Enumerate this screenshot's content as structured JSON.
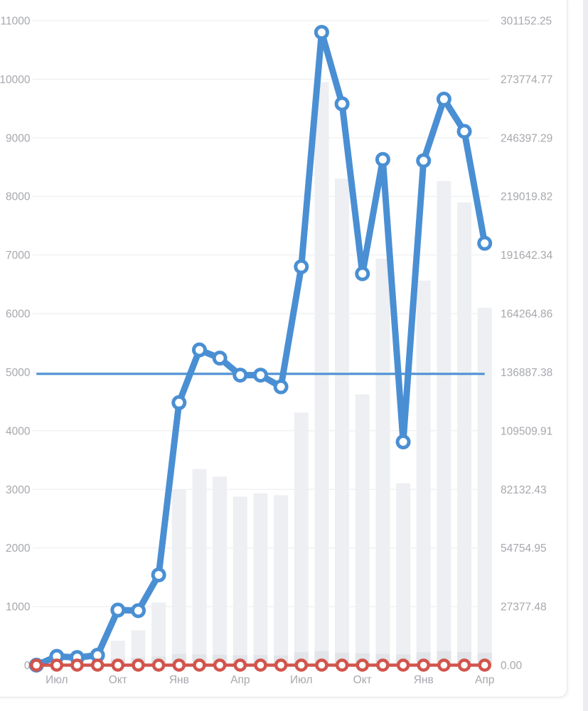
{
  "card": {
    "background": "#ffffff",
    "border_color": "#e7e8ea"
  },
  "chart_data": {
    "type": "line",
    "title": "",
    "xlabel": "",
    "ylabel": "",
    "point_count": 23,
    "x_axis": {
      "visible_tick_labels": [
        {
          "point_index": 1,
          "label": "Июл"
        },
        {
          "point_index": 4,
          "label": "Окт"
        },
        {
          "point_index": 7,
          "label": "Янв"
        },
        {
          "point_index": 10,
          "label": "Апр"
        },
        {
          "point_index": 13,
          "label": "Июл"
        },
        {
          "point_index": 16,
          "label": "Окт"
        },
        {
          "point_index": 19,
          "label": "Янв"
        },
        {
          "point_index": 22,
          "label": "Апр"
        }
      ]
    },
    "left_axis": {
      "min": 0,
      "max": 11000,
      "tick_step": 1000,
      "tick_labels": [
        "11000",
        "10000",
        "9000",
        "8000",
        "7000",
        "6000",
        "5000",
        "4000",
        "3000",
        "2000",
        "1000",
        "0"
      ]
    },
    "right_axis": {
      "min": 0,
      "max": 301152.25,
      "tick_labels": [
        "301152.25",
        "273774.77",
        "246397.29",
        "219019.82",
        "191642.34",
        "164264.86",
        "136887.38",
        "109509.91",
        "82132.43",
        "54754.95",
        "27377.48",
        "0.00"
      ]
    },
    "grid": {
      "horizontal": true,
      "vertical": false,
      "color": "#eaebed"
    },
    "legend": {
      "visible": false
    },
    "series": [
      {
        "name": "blue-line",
        "type": "line",
        "axis": "left",
        "color": "#4a8fd3",
        "values": [
          0,
          150,
          130,
          170,
          940,
          930,
          1540,
          4480,
          5380,
          5240,
          4950,
          4950,
          4750,
          6800,
          10800,
          9580,
          6680,
          8630,
          3810,
          8610,
          9660,
          9110,
          7200
        ]
      },
      {
        "name": "red-line",
        "type": "line",
        "axis": "left",
        "color": "#d2544c",
        "values": [
          0,
          0,
          0,
          0,
          0,
          0,
          0,
          0,
          0,
          0,
          0,
          0,
          0,
          0,
          0,
          0,
          0,
          0,
          0,
          0,
          0,
          0,
          0
        ]
      },
      {
        "name": "bars-primary",
        "type": "bar",
        "axis": "right",
        "color": "#edeff2",
        "values": [
          0,
          0,
          0,
          0,
          11400,
          16300,
          29300,
          82100,
          91600,
          88100,
          78700,
          80300,
          79400,
          118000,
          272400,
          227300,
          126500,
          189900,
          85000,
          179700,
          226200,
          216200,
          167000
        ]
      },
      {
        "name": "bars-secondary",
        "type": "bar",
        "axis": "right",
        "color": "#e1e4e8",
        "values": [
          0,
          0,
          0,
          0,
          3000,
          3500,
          4000,
          5200,
          5000,
          4800,
          4600,
          4700,
          4500,
          6000,
          6500,
          5800,
          5500,
          5200,
          5000,
          6000,
          6500,
          6200,
          5800
        ]
      }
    ],
    "average_line": {
      "value": 4970,
      "color": "#4a8fd3"
    },
    "label_color": "#a6a8ad"
  }
}
